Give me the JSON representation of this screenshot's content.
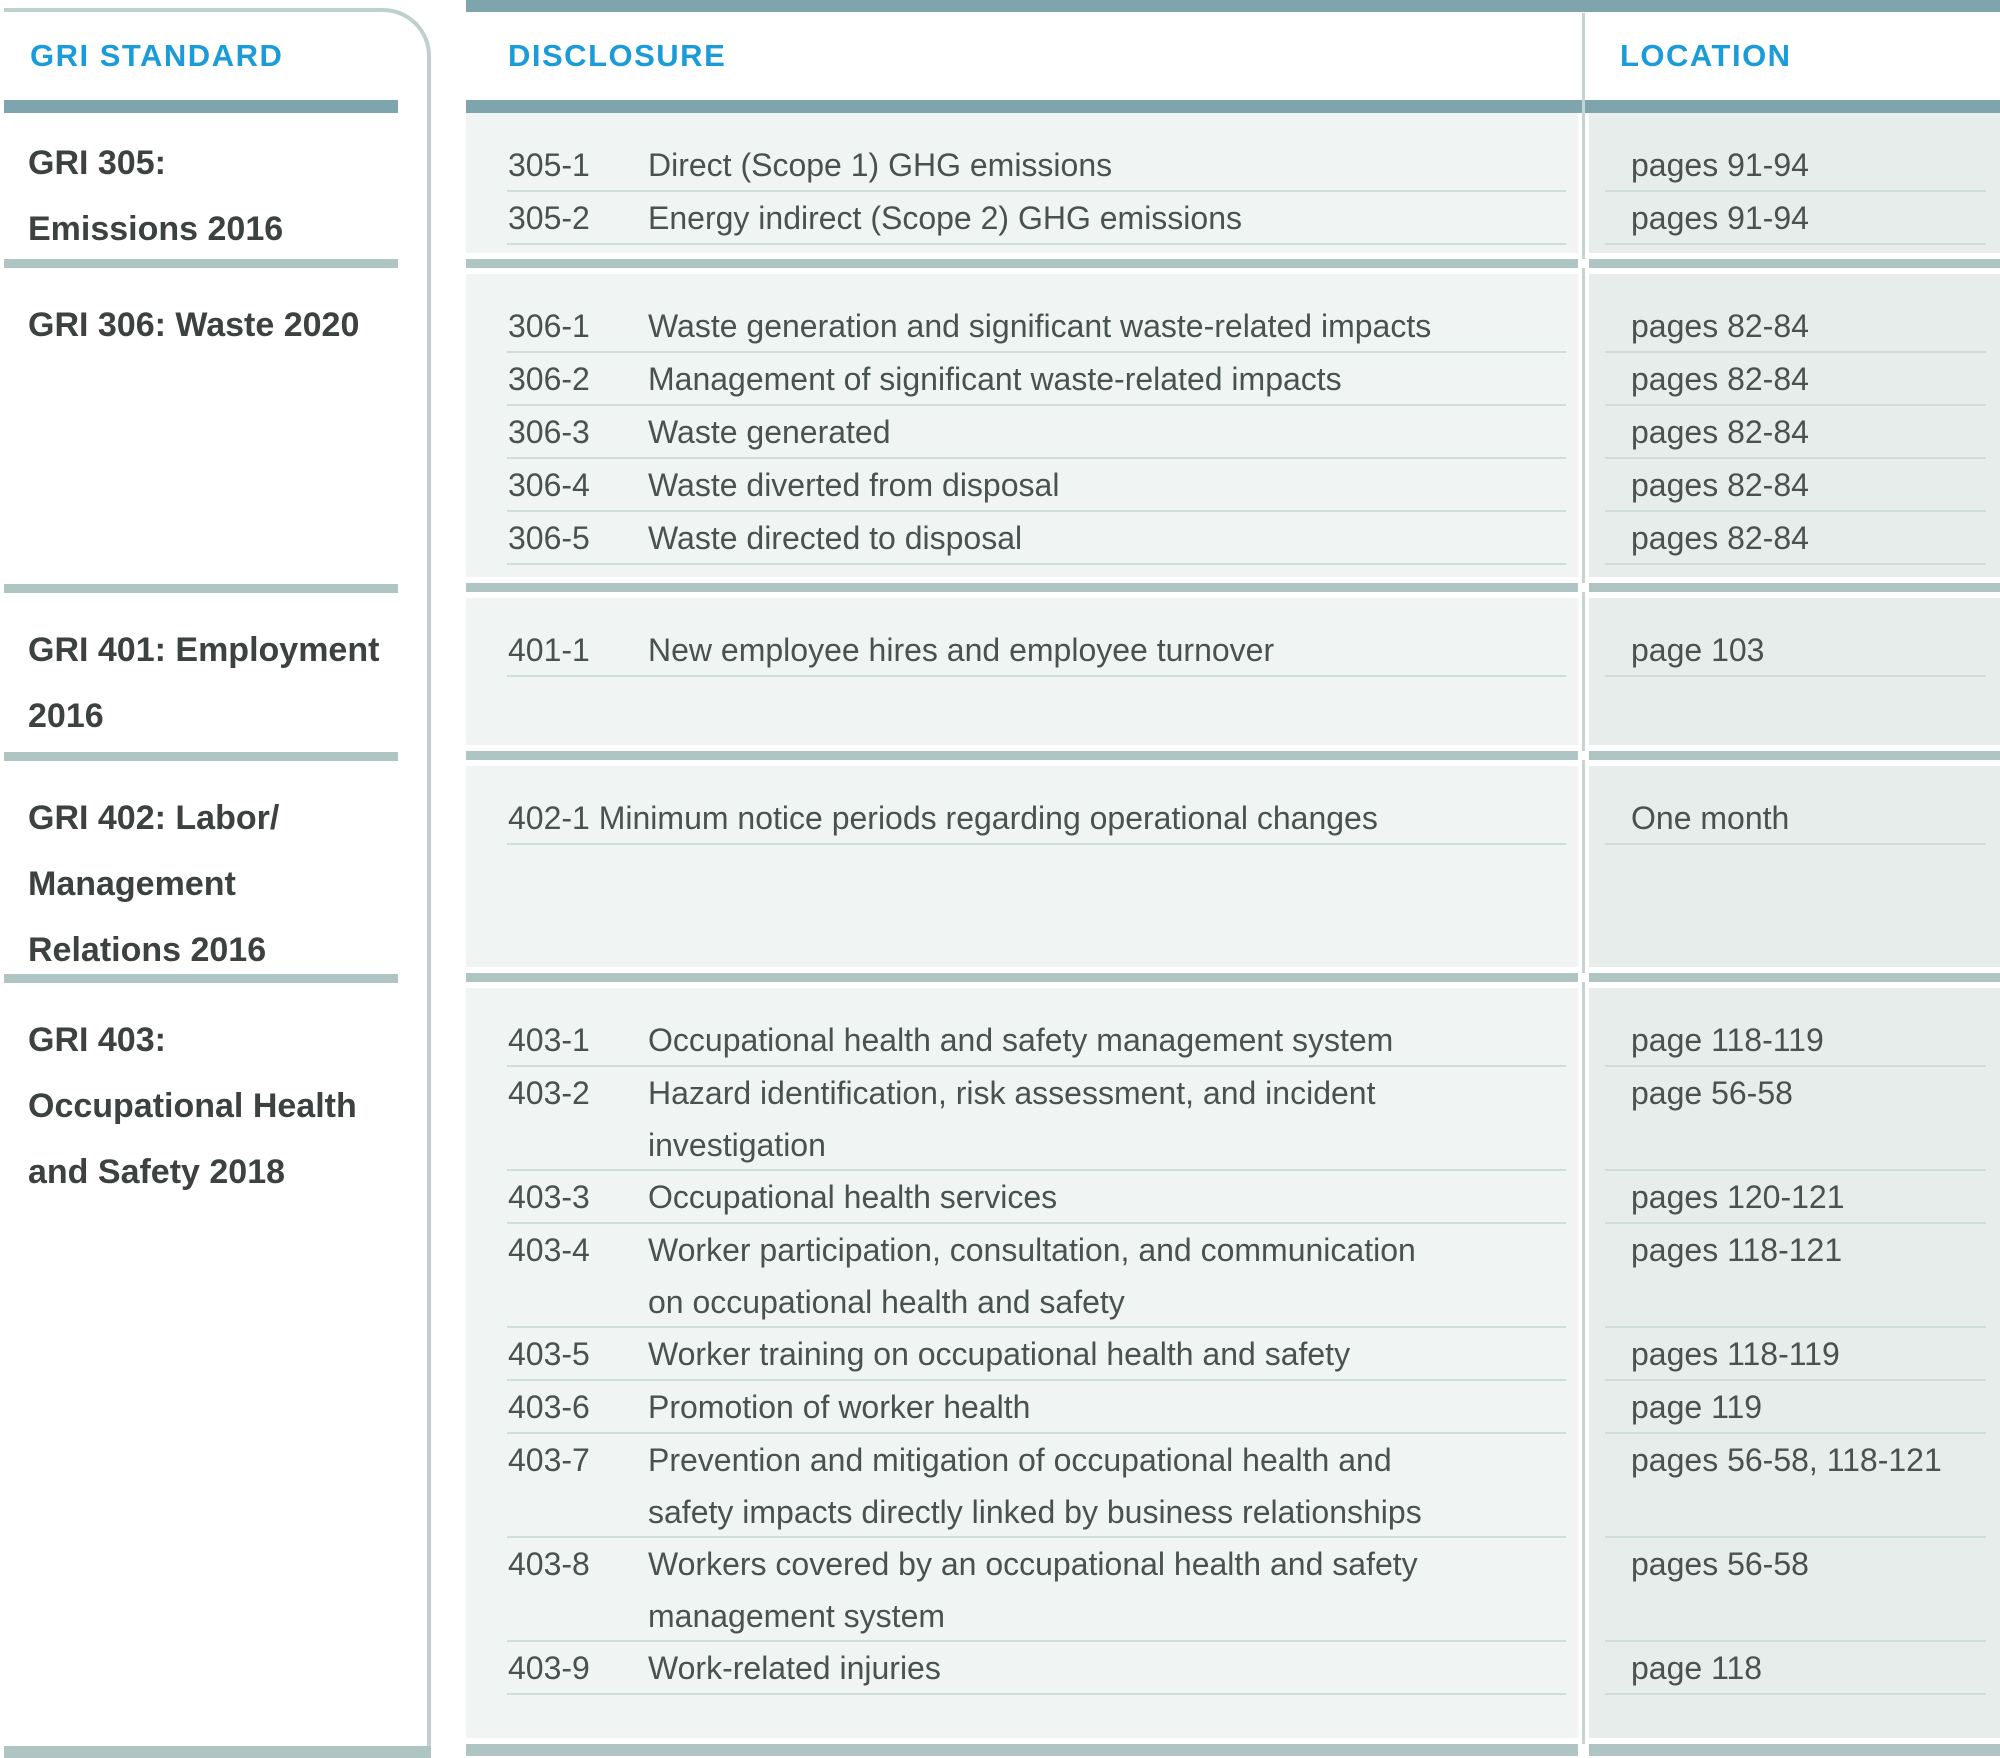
{
  "header": {
    "standard": "GRI STANDARD",
    "disclosure": "DISCLOSURE",
    "location": "LOCATION"
  },
  "colors": {
    "accent_blue": "#1b9cd8",
    "header_bar_teal": "#7ea5ad",
    "section_bar_sage": "#aec5c4",
    "disclosure_bg": "#f0f4f2",
    "location_bg": "#e7edeb",
    "separator": "#cfdedb",
    "text_dark": "#49524f"
  },
  "sections": [
    {
      "standard_lines": [
        "GRI 305:",
        "Emissions 2016"
      ],
      "rows": [
        {
          "code": "305-1",
          "disclosure_lines": [
            "Direct (Scope 1) GHG emissions"
          ],
          "location": "pages 91-94"
        },
        {
          "code": "305-2",
          "disclosure_lines": [
            "Energy indirect (Scope 2) GHG emissions"
          ],
          "location": "pages 91-94"
        }
      ]
    },
    {
      "standard_lines": [
        "GRI 306: Waste 2020"
      ],
      "rows": [
        {
          "code": "306-1",
          "disclosure_lines": [
            "Waste generation and significant waste-related impacts"
          ],
          "location": "pages 82-84"
        },
        {
          "code": "306-2",
          "disclosure_lines": [
            "Management of significant waste-related impacts"
          ],
          "location": "pages 82-84"
        },
        {
          "code": "306-3",
          "disclosure_lines": [
            "Waste generated"
          ],
          "location": "pages 82-84"
        },
        {
          "code": "306-4",
          "disclosure_lines": [
            "Waste diverted from disposal"
          ],
          "location": "pages 82-84"
        },
        {
          "code": "306-5",
          "disclosure_lines": [
            "Waste directed to disposal"
          ],
          "location": "pages 82-84"
        }
      ]
    },
    {
      "standard_lines": [
        "GRI 401: Employment",
        "2016"
      ],
      "rows": [
        {
          "code": "401-1",
          "disclosure_lines": [
            "New employee hires and employee turnover"
          ],
          "location": "page 103"
        }
      ]
    },
    {
      "standard_lines": [
        "GRI 402: Labor/",
        "Management",
        "Relations 2016"
      ],
      "rows": [
        {
          "code": "402-1",
          "inline": true,
          "disclosure_lines": [
            "Minimum notice periods regarding operational changes"
          ],
          "location": "One month"
        }
      ]
    },
    {
      "standard_lines": [
        "GRI 403:",
        "Occupational Health",
        "and Safety 2018"
      ],
      "rows": [
        {
          "code": "403-1",
          "disclosure_lines": [
            "Occupational health and safety management system"
          ],
          "location": "page 118-119"
        },
        {
          "code": "403-2",
          "disclosure_lines": [
            "Hazard identification, risk assessment, and incident",
            "investigation"
          ],
          "location": "page 56-58"
        },
        {
          "code": "403-3",
          "disclosure_lines": [
            "Occupational health services"
          ],
          "location": "pages 120-121"
        },
        {
          "code": "403-4",
          "disclosure_lines": [
            "Worker participation, consultation, and communication",
            "on occupational health and safety"
          ],
          "location": "pages 118-121"
        },
        {
          "code": "403-5",
          "disclosure_lines": [
            "Worker training on occupational health and safety"
          ],
          "location": "pages 118-119"
        },
        {
          "code": "403-6",
          "disclosure_lines": [
            "Promotion of worker health"
          ],
          "location": "page 119"
        },
        {
          "code": "403-7",
          "disclosure_lines": [
            "Prevention and mitigation of occupational health and",
            "safety impacts directly linked by business relationships"
          ],
          "location": "pages 56-58, 118-121"
        },
        {
          "code": "403-8",
          "disclosure_lines": [
            "Workers covered by an occupational health and safety",
            "management system"
          ],
          "location": "pages 56-58"
        },
        {
          "code": "403-9",
          "disclosure_lines": [
            "Work-related injuries"
          ],
          "location": "page 118"
        }
      ]
    }
  ]
}
